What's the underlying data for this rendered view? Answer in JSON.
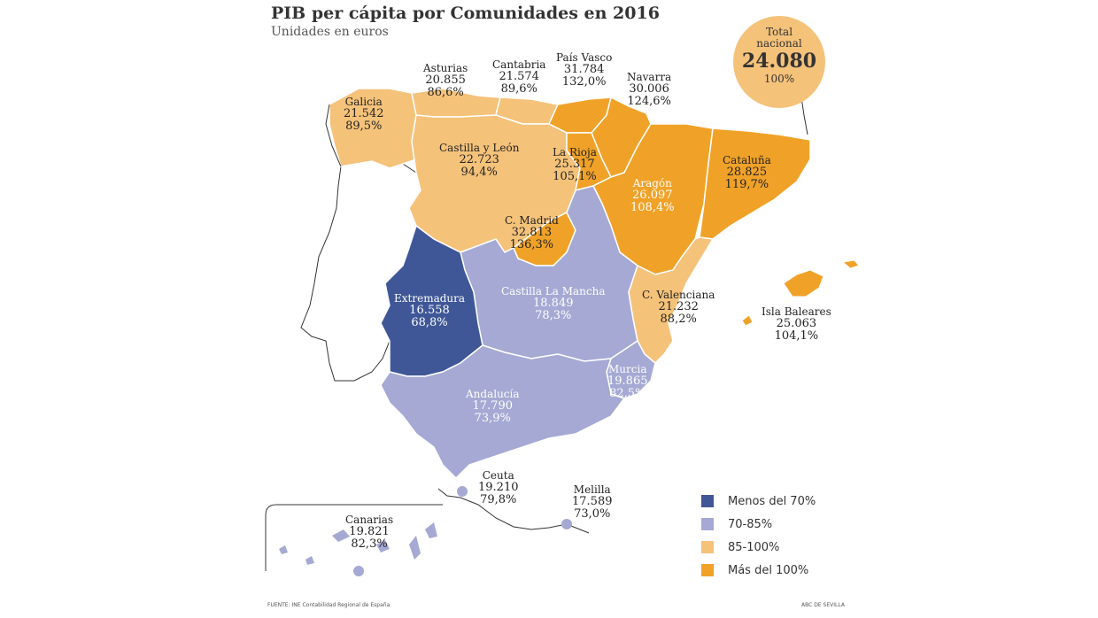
{
  "header": {
    "title": "PIB per cápita por Comunidades en 2016",
    "subtitle": "Unidades en euros"
  },
  "total": {
    "label_line1": "Total",
    "label_line2": "nacional",
    "value": "24.080",
    "pct": "100%"
  },
  "colors": {
    "menos70": "#3f5797",
    "r70_85": "#a5a9d3",
    "r85_100": "#f5c27a",
    "mas100": "#f0a228",
    "portugal": "#ffffff"
  },
  "regions": {
    "galicia": {
      "name": "Galicia",
      "value": "21.542",
      "pct": "89,5%"
    },
    "asturias": {
      "name": "Asturias",
      "value": "20.855",
      "pct": "86,6%"
    },
    "cantabria": {
      "name": "Cantabria",
      "value": "21.574",
      "pct": "89,6%"
    },
    "pais_vasco": {
      "name": "País Vasco",
      "value": "31.784",
      "pct": "132,0%"
    },
    "navarra": {
      "name": "Navarra",
      "value": "30.006",
      "pct": "124,6%"
    },
    "castilla_leon": {
      "name": "Castilla y León",
      "value": "22.723",
      "pct": "94,4%"
    },
    "la_rioja": {
      "name": "La Rioja",
      "value": "25.317",
      "pct": "105,1%"
    },
    "aragon": {
      "name": "Aragón",
      "value": "26.097",
      "pct": "108,4%"
    },
    "cataluna": {
      "name": "Cataluña",
      "value": "28.825",
      "pct": "119,7%"
    },
    "madrid": {
      "name": "C. Madrid",
      "value": "32.813",
      "pct": "136,3%"
    },
    "extremadura": {
      "name": "Extremadura",
      "value": "16.558",
      "pct": "68,8%"
    },
    "castilla_mancha": {
      "name": "Castilla La Mancha",
      "value": "18.849",
      "pct": "78,3%"
    },
    "valenciana": {
      "name": "C. Valenciana",
      "value": "21.232",
      "pct": "88,2%"
    },
    "baleares": {
      "name": "Isla Baleares",
      "value": "25.063",
      "pct": "104,1%"
    },
    "murcia": {
      "name": "Murcia",
      "value": "19.865",
      "pct": "82,5%"
    },
    "andalucia": {
      "name": "Andalucía",
      "value": "17.790",
      "pct": "73,9%"
    },
    "ceuta": {
      "name": "Ceuta",
      "value": "19.210",
      "pct": "79,8%"
    },
    "melilla": {
      "name": "Melilla",
      "value": "17.589",
      "pct": "73,0%"
    },
    "canarias": {
      "name": "Canarias",
      "value": "19.821",
      "pct": "82,3%"
    }
  },
  "legend": [
    {
      "label": "Menos del 70%",
      "color": "#3f5797"
    },
    {
      "label": "70-85%",
      "color": "#a5a9d3"
    },
    {
      "label": "85-100%",
      "color": "#f5c27a"
    },
    {
      "label": "Más del 100%",
      "color": "#f0a228"
    }
  ],
  "footer": {
    "source": "FUENTE: INE Contabilidad Regional de España",
    "credit": "ABC DE SEVILLA"
  }
}
